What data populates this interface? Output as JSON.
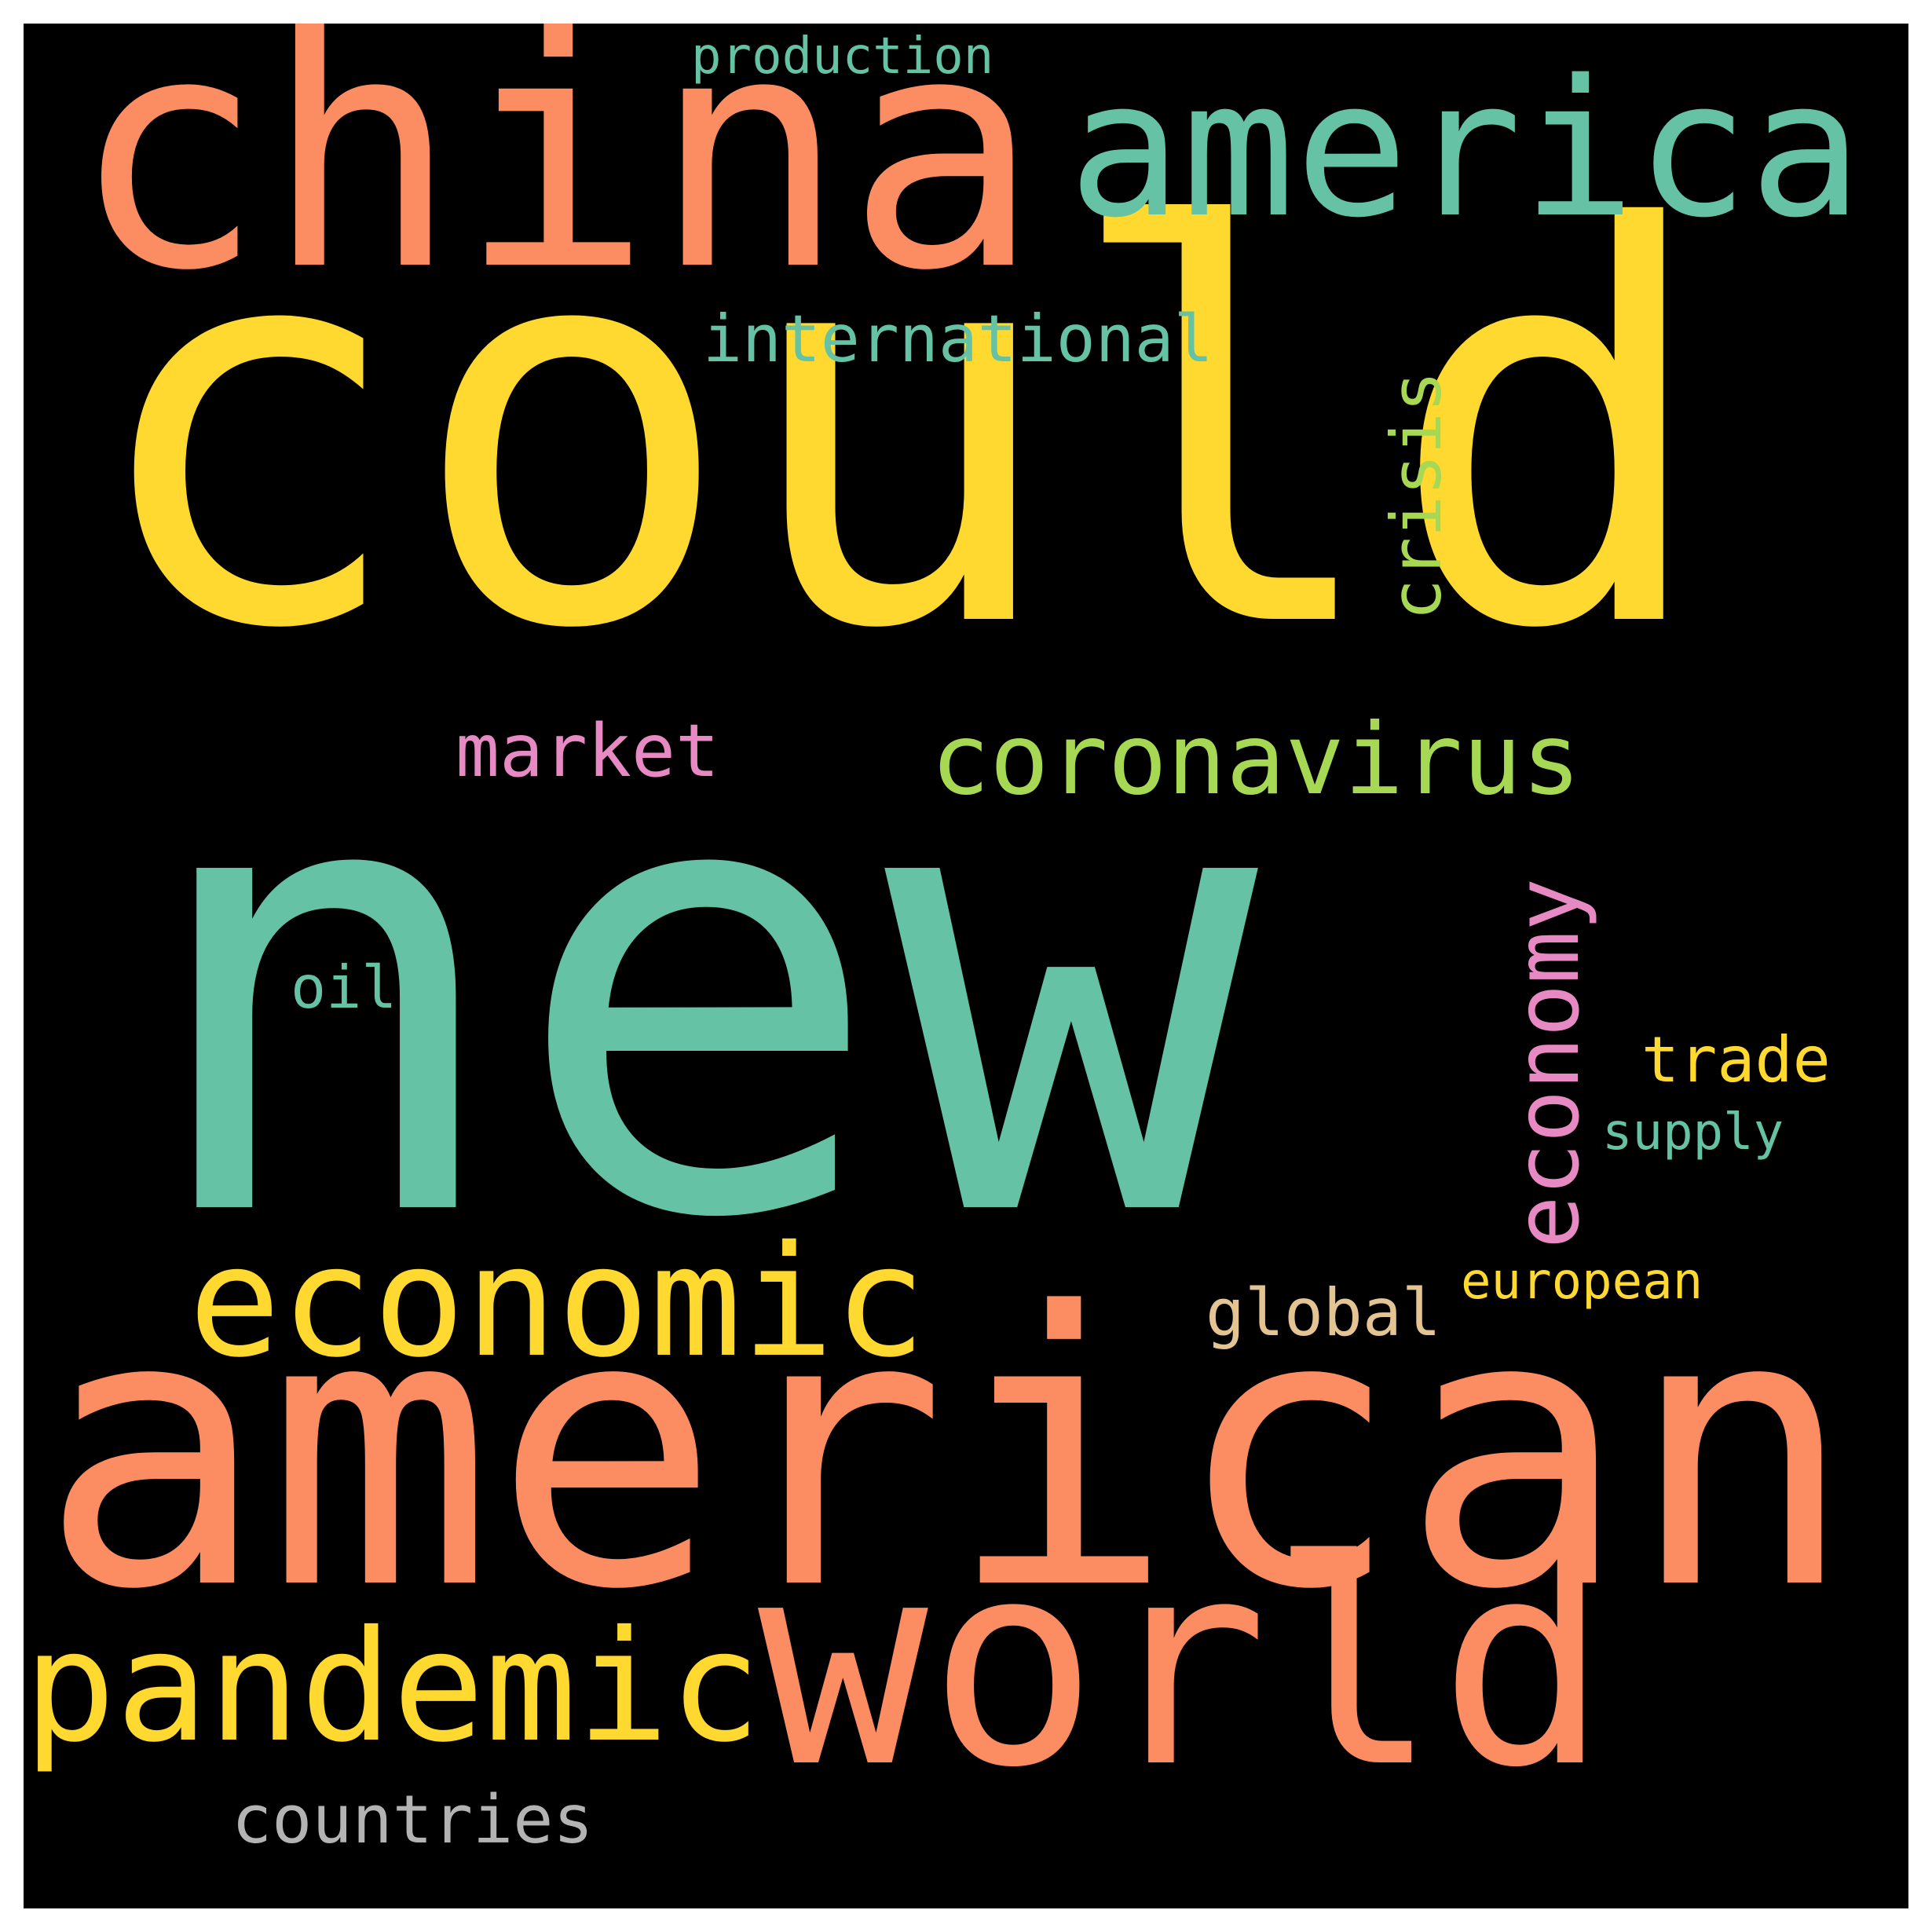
{
  "word_cloud": {
    "background": "#000000",
    "frame": "#ffffff",
    "words": [
      {
        "key": "could",
        "text": "could",
        "color": "#ffd92f",
        "orientation": "horizontal"
      },
      {
        "key": "new",
        "text": "new",
        "color": "#66c2a5",
        "orientation": "horizontal"
      },
      {
        "key": "american",
        "text": "american",
        "color": "#fc8d62",
        "orientation": "horizontal"
      },
      {
        "key": "china",
        "text": "china",
        "color": "#fc8d62",
        "orientation": "horizontal"
      },
      {
        "key": "america",
        "text": "america",
        "color": "#66c2a5",
        "orientation": "horizontal"
      },
      {
        "key": "world",
        "text": "world",
        "color": "#fc8d62",
        "orientation": "horizontal"
      },
      {
        "key": "economic",
        "text": "economic",
        "color": "#ffd92f",
        "orientation": "horizontal"
      },
      {
        "key": "pandemic",
        "text": "pandemic",
        "color": "#ffd92f",
        "orientation": "horizontal"
      },
      {
        "key": "coronavirus",
        "text": "coronavirus",
        "color": "#a6d854",
        "orientation": "horizontal"
      },
      {
        "key": "economy",
        "text": "economy",
        "color": "#e78ac3",
        "orientation": "vertical"
      },
      {
        "key": "crisis",
        "text": "crisis",
        "color": "#a6d854",
        "orientation": "vertical"
      },
      {
        "key": "international",
        "text": "international",
        "color": "#66c2a5",
        "orientation": "horizontal"
      },
      {
        "key": "market",
        "text": "market",
        "color": "#e78ac3",
        "orientation": "horizontal"
      },
      {
        "key": "countries",
        "text": "countries",
        "color": "#b3b3b3",
        "orientation": "horizontal"
      },
      {
        "key": "trade",
        "text": "trade",
        "color": "#ffd92f",
        "orientation": "horizontal"
      },
      {
        "key": "global",
        "text": "global",
        "color": "#e5c494",
        "orientation": "horizontal"
      },
      {
        "key": "european",
        "text": "european",
        "color": "#ffd92f",
        "orientation": "horizontal"
      },
      {
        "key": "supply",
        "text": "supply",
        "color": "#66c2a5",
        "orientation": "horizontal"
      },
      {
        "key": "oil",
        "text": "oil",
        "color": "#66c2a5",
        "orientation": "horizontal"
      },
      {
        "key": "production",
        "text": "production",
        "color": "#66c2a5",
        "orientation": "horizontal"
      }
    ]
  }
}
